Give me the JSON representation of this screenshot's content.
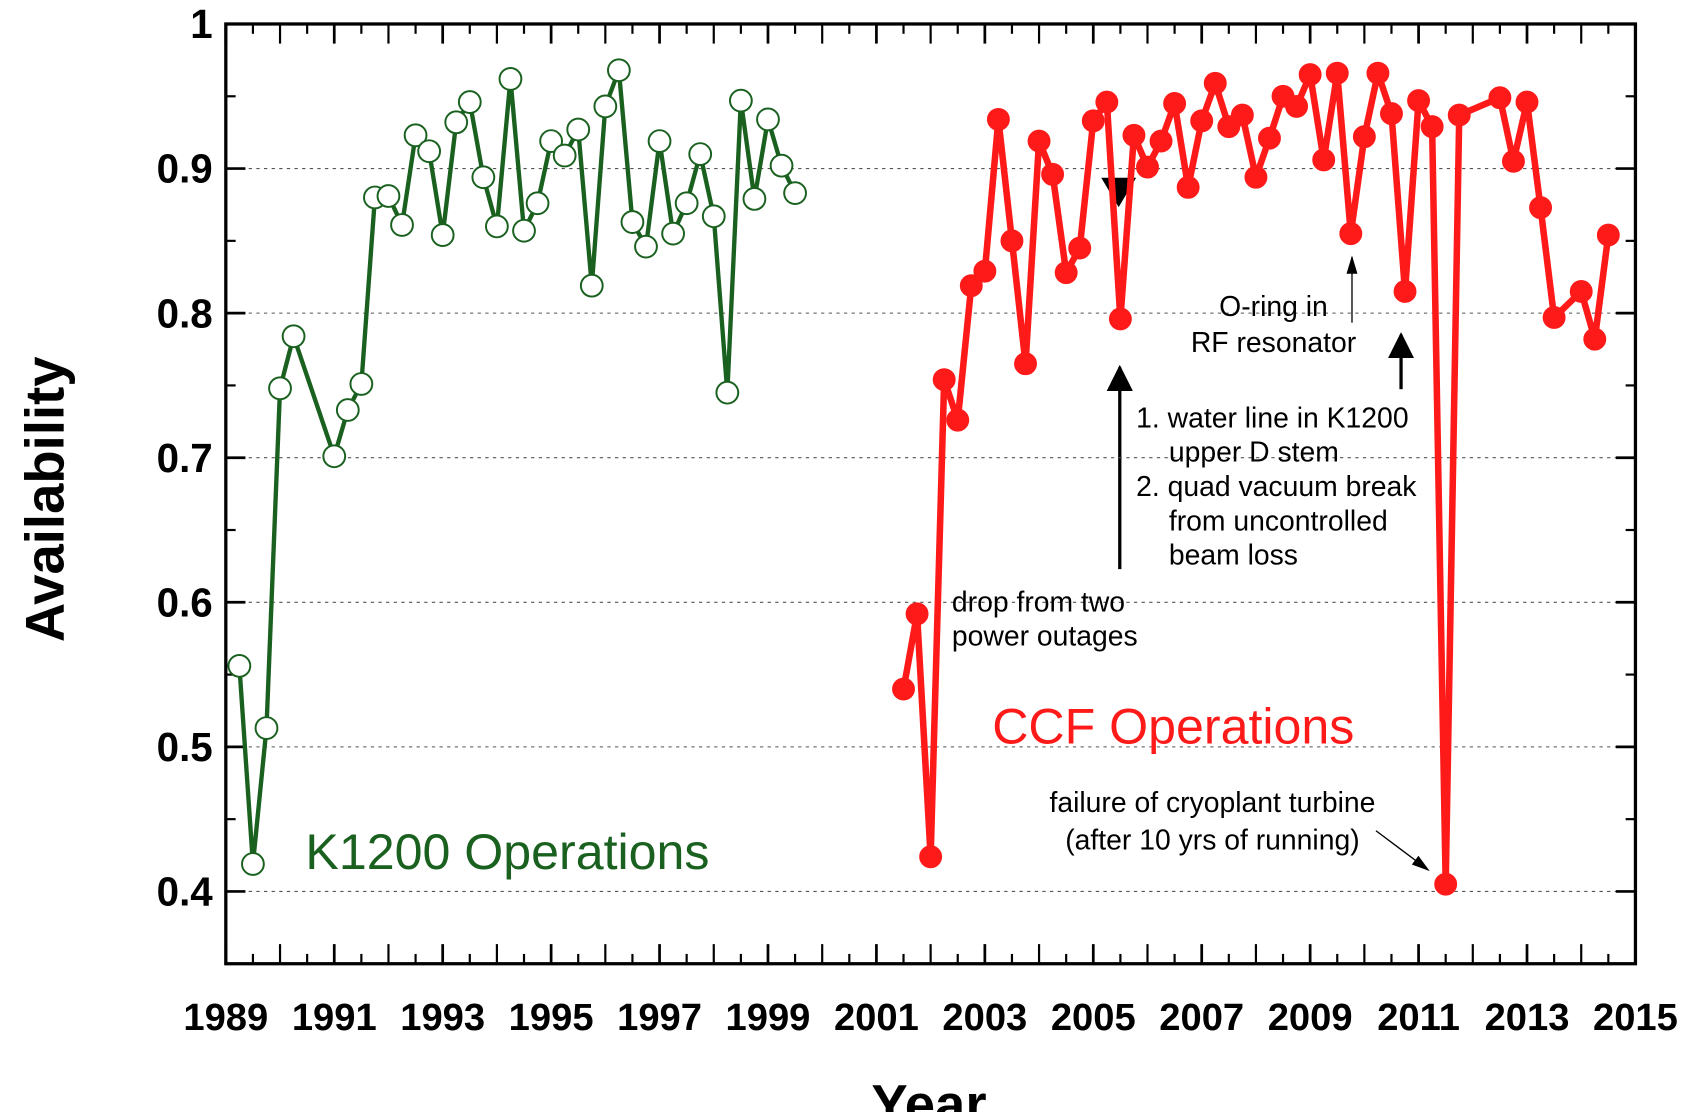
{
  "chart_data": {
    "type": "line",
    "xlabel": "Year",
    "ylabel": "Availability",
    "xlim": [
      1989,
      2015
    ],
    "xticks": [
      1989,
      1991,
      1993,
      1995,
      1997,
      1999,
      2001,
      2003,
      2005,
      2007,
      2009,
      2011,
      2013,
      2015
    ],
    "ylim": [
      0.35,
      1
    ],
    "yticks": [
      0.4,
      0.5,
      0.6,
      0.7,
      0.8,
      0.9,
      1
    ],
    "grid": true,
    "series": [
      {
        "name": "K1200 Operations",
        "color": "#1a6120",
        "marker": "open-circle",
        "x": [
          1989.25,
          1989.5,
          1989.75,
          1990,
          1990.25,
          1991,
          1991.25,
          1991.5,
          1991.75,
          1992,
          1992.25,
          1992.5,
          1992.75,
          1993,
          1993.25,
          1993.5,
          1993.75,
          1994,
          1994.25,
          1994.5,
          1994.75,
          1995,
          1995.25,
          1995.5,
          1995.75,
          1996,
          1996.25,
          1996.5,
          1996.75,
          1997,
          1997.25,
          1997.5,
          1997.75,
          1998,
          1998.25,
          1998.5,
          1998.75,
          1999,
          1999.25,
          1999.5
        ],
        "values": [
          0.556,
          0.419,
          0.513,
          0.748,
          0.784,
          0.701,
          0.733,
          0.751,
          0.88,
          0.881,
          0.861,
          0.923,
          0.912,
          0.854,
          0.932,
          0.946,
          0.894,
          0.86,
          0.962,
          0.857,
          0.876,
          0.919,
          0.909,
          0.927,
          0.819,
          0.943,
          0.968,
          0.863,
          0.846,
          0.919,
          0.855,
          0.876,
          0.91,
          0.867,
          0.745,
          0.947,
          0.879,
          0.934,
          0.902,
          0.883
        ]
      },
      {
        "name": "CCF Operations",
        "color": "#ff1a1a",
        "marker": "filled-circle",
        "x": [
          2001.5,
          2001.75,
          2002,
          2002.25,
          2002.5,
          2002.75,
          2003,
          2003.25,
          2003.5,
          2003.75,
          2004,
          2004.25,
          2004.5,
          2004.75,
          2005,
          2005.25,
          2005.5,
          2005.75,
          2006,
          2006.25,
          2006.5,
          2006.75,
          2007,
          2007.25,
          2007.5,
          2007.75,
          2008,
          2008.25,
          2008.5,
          2008.75,
          2009,
          2009.25,
          2009.5,
          2009.75,
          2010,
          2010.25,
          2010.5,
          2010.75,
          2011,
          2011.25,
          2011.5,
          2011.75,
          2012.5,
          2012.75,
          2013,
          2013.25,
          2013.5,
          2014,
          2014.25,
          2014.5
        ],
        "values": [
          0.54,
          0.592,
          0.424,
          0.754,
          0.726,
          0.819,
          0.829,
          0.934,
          0.85,
          0.765,
          0.919,
          0.896,
          0.828,
          0.845,
          0.933,
          0.946,
          0.796,
          0.923,
          0.901,
          0.919,
          0.945,
          0.887,
          0.933,
          0.959,
          0.929,
          0.937,
          0.894,
          0.921,
          0.95,
          0.943,
          0.965,
          0.906,
          0.966,
          0.855,
          0.922,
          0.966,
          0.938,
          0.815,
          0.947,
          0.929,
          0.405,
          0.937,
          0.949,
          0.905,
          0.946,
          0.873,
          0.797,
          0.815,
          0.782,
          0.854
        ]
      }
    ],
    "annotations": [
      {
        "lines": [
          "drop from two",
          "power outages"
        ]
      },
      {
        "lines": [
          "1. water line in K1200",
          "upper D stem",
          "2. quad vacuum break",
          "from uncontrolled",
          "beam loss"
        ]
      },
      {
        "lines": [
          "O-ring in",
          "RF resonator"
        ]
      },
      {
        "lines": [
          "failure of cryoplant turbine",
          "(after 10 yrs of running)"
        ]
      }
    ]
  }
}
